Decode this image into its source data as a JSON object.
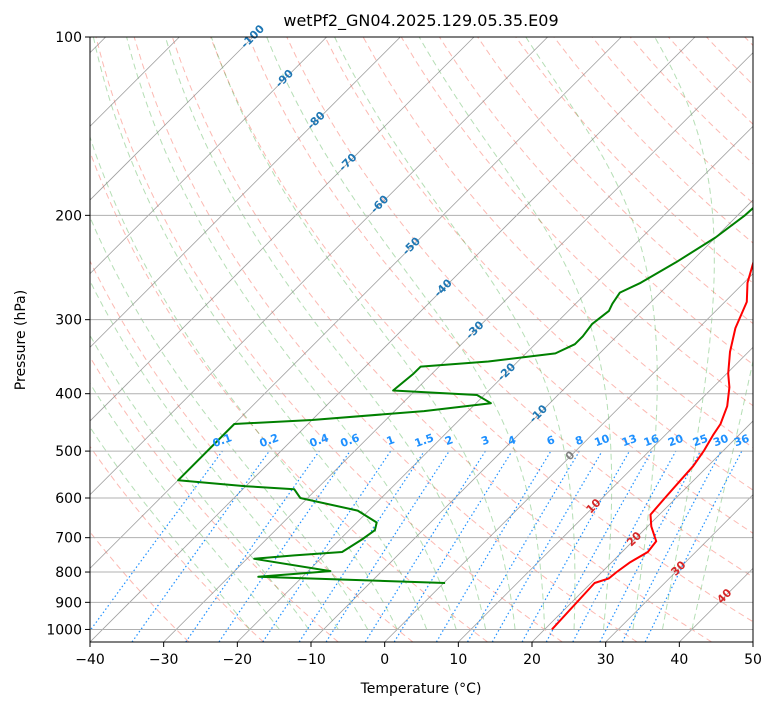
{
  "chart_data": {
    "type": "line",
    "subtype": "skew-T log-P diagram",
    "title": "wetPf2_GN04.2025.129.05.35.E09",
    "xlabel": "Temperature (°C)",
    "ylabel": "Pressure (hPa)",
    "xlim": [
      -40,
      50
    ],
    "ylim": [
      1050,
      100
    ],
    "y_scale": "log",
    "x_ticks": [
      -40,
      -30,
      -20,
      -10,
      0,
      10,
      20,
      30,
      40,
      50
    ],
    "y_ticks": [
      100,
      200,
      300,
      400,
      500,
      600,
      700,
      800,
      900,
      1000
    ],
    "grid": true,
    "colors": {
      "temperature": "#ff0000",
      "dewpoint": "#008000",
      "isotherm_label": "#1f77b4",
      "mixing_ratio": "#1e90ff",
      "dry_adiabat": "#fa8072",
      "moist_adiabat": "#2ca02c",
      "isotherm": "#808080",
      "wet_bulb_zero_label": "#808080",
      "dry_adiabat_label": "#d62728"
    },
    "series": [
      {
        "name": "",
        "kind": "temperature",
        "points": [
          [
            21,
            1000
          ],
          [
            20.5,
            835
          ],
          [
            21.8,
            820
          ],
          [
            22,
            800
          ],
          [
            22.5,
            770
          ],
          [
            23.5,
            740
          ],
          [
            23.2,
            710
          ],
          [
            20.5,
            670
          ],
          [
            18.8,
            640
          ],
          [
            18.5,
            600
          ],
          [
            18.2,
            560
          ],
          [
            18,
            530
          ],
          [
            17.4,
            500
          ],
          [
            16.5,
            470
          ],
          [
            16,
            450
          ],
          [
            14.5,
            420
          ],
          [
            12.2,
            390
          ],
          [
            10.2,
            370
          ],
          [
            7.5,
            340
          ],
          [
            5,
            310
          ],
          [
            3,
            280
          ],
          [
            0.5,
            260
          ],
          [
            -1.5,
            240
          ],
          [
            -2.5,
            220
          ],
          [
            -3.5,
            200
          ],
          [
            -4.5,
            180
          ],
          [
            -5,
            160
          ],
          [
            -5,
            150
          ],
          [
            -4.2,
            140
          ],
          [
            -2.8,
            135
          ],
          [
            -0.8,
            130
          ],
          [
            1,
            125
          ],
          [
            3.2,
            120
          ],
          [
            5.5,
            113
          ],
          [
            7.2,
            107
          ],
          [
            8.8,
            100
          ]
        ]
      },
      {
        "name": "",
        "kind": "dewpoint",
        "points": [
          [
            0.2,
            835
          ],
          [
            -26,
            815
          ],
          [
            -17,
            797
          ],
          [
            -29,
            760
          ],
          [
            -24,
            750
          ],
          [
            -18,
            740
          ],
          [
            -17,
            705
          ],
          [
            -16.5,
            680
          ],
          [
            -17.3,
            660
          ],
          [
            -21.5,
            630
          ],
          [
            -31,
            600
          ],
          [
            -33,
            580
          ],
          [
            -40,
            573
          ],
          [
            -50,
            560
          ],
          [
            -50,
            450
          ],
          [
            -40,
            443
          ],
          [
            -26,
            428
          ],
          [
            -18,
            415
          ],
          [
            -21,
            402
          ],
          [
            -33,
            395
          ],
          [
            -32.5,
            370
          ],
          [
            -32.5,
            360
          ],
          [
            -24,
            353
          ],
          [
            -16,
            342
          ],
          [
            -14.6,
            330
          ],
          [
            -14.6,
            320
          ],
          [
            -15,
            305
          ],
          [
            -14.5,
            290
          ],
          [
            -15,
            282
          ],
          [
            -15.5,
            270
          ],
          [
            -14,
            260
          ],
          [
            -12,
            240
          ],
          [
            -10,
            218
          ],
          [
            -9,
            200
          ],
          [
            -8.8,
            190
          ],
          [
            -8.2,
            180
          ],
          [
            -6.8,
            165
          ],
          [
            -5.8,
            155
          ],
          [
            -5.5,
            145
          ],
          [
            -5.2,
            140
          ],
          [
            -5.8,
            135
          ],
          [
            -6.8,
            128
          ],
          [
            -7,
            122
          ],
          [
            -6.2,
            117
          ],
          [
            -4.2,
            110
          ],
          [
            -2.5,
            104
          ],
          [
            -1.2,
            100
          ]
        ]
      }
    ],
    "isotherm_labels": [
      "-100",
      "-90",
      "-80",
      "-70",
      "-60",
      "-50",
      "-40",
      "-30",
      "-20",
      "-10",
      "0"
    ],
    "isotherm_label_values": [
      -100,
      -90,
      -80,
      -70,
      -60,
      -50,
      -40,
      -30,
      -20,
      -10,
      0
    ],
    "mixing_ratio_labels": [
      "0.1",
      "0.2",
      "0.4",
      "0.6",
      "1",
      "1.5",
      "2",
      "3",
      "4",
      "6",
      "8",
      "10",
      "13",
      "16",
      "20",
      "25",
      "30",
      "36"
    ],
    "mixing_ratio_values": [
      0.1,
      0.2,
      0.4,
      0.6,
      1,
      1.5,
      2,
      3,
      4,
      6,
      8,
      10,
      13,
      16,
      20,
      25,
      30,
      36
    ],
    "dry_adiabat_labels": [
      "10",
      "20",
      "30",
      "40"
    ],
    "dry_adiabat_label_values": [
      10,
      20,
      30,
      40
    ]
  }
}
